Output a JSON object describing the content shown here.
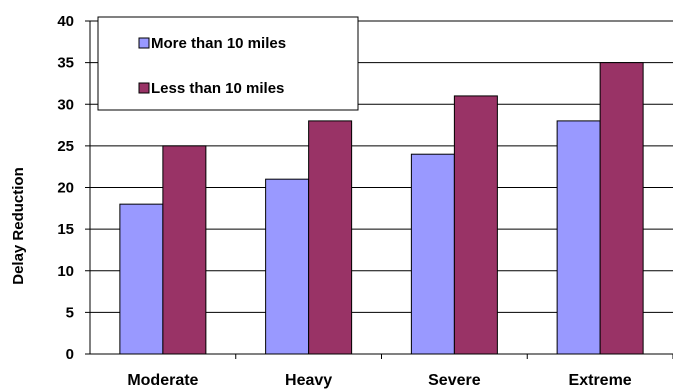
{
  "chart_data": {
    "type": "bar",
    "title": "",
    "xlabel": "",
    "ylabel": "Delay Reduction",
    "ylim": [
      0,
      40
    ],
    "yticks": [
      0,
      5,
      10,
      15,
      20,
      25,
      30,
      35,
      40
    ],
    "grid": true,
    "legend_position": "top-left",
    "categories": [
      "Moderate",
      "Heavy",
      "Severe",
      "Extreme"
    ],
    "series": [
      {
        "name": "More than 10 miles",
        "color": "#9999ff",
        "values": [
          18,
          21,
          24,
          28
        ]
      },
      {
        "name": "Less than 10 miles",
        "color": "#993366",
        "values": [
          25,
          28,
          31,
          35
        ]
      }
    ]
  }
}
